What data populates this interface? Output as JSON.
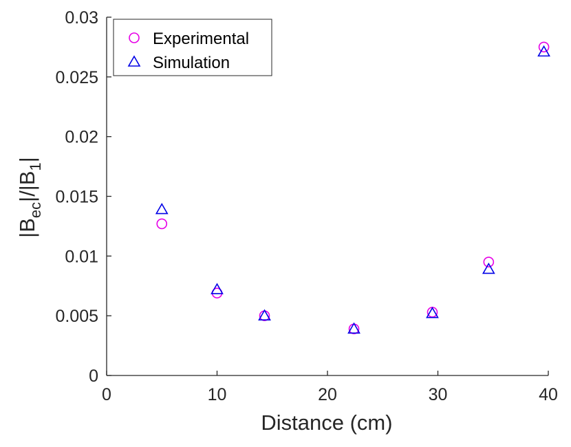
{
  "chart_data": {
    "type": "scatter",
    "xlabel": "Distance (cm)",
    "ylabel": {
      "parts": [
        "|B",
        "ec",
        "|/|B",
        "1",
        "|"
      ]
    },
    "xlim": [
      0,
      40
    ],
    "ylim": [
      0,
      0.03
    ],
    "xticks": [
      0,
      10,
      20,
      30,
      40
    ],
    "yticks": [
      0,
      0.005,
      0.01,
      0.015,
      0.02,
      0.025,
      0.03
    ],
    "xtick_labels": [
      "0",
      "10",
      "20",
      "30",
      "40"
    ],
    "ytick_labels": [
      "0",
      "0.005",
      "0.01",
      "0.015",
      "0.02",
      "0.025",
      "0.03"
    ],
    "grid": false,
    "legend_position": "top-left",
    "series": [
      {
        "name": "Experimental",
        "marker": "circle",
        "color": "#e600e6",
        "points": [
          {
            "x": 5,
            "y": 0.0127
          },
          {
            "x": 10,
            "y": 0.0069
          },
          {
            "x": 14.3,
            "y": 0.005
          },
          {
            "x": 22.4,
            "y": 0.0039
          },
          {
            "x": 29.5,
            "y": 0.0053
          },
          {
            "x": 34.6,
            "y": 0.0095
          },
          {
            "x": 39.6,
            "y": 0.0275
          }
        ]
      },
      {
        "name": "Simulation",
        "marker": "triangle",
        "color": "#0000e6",
        "points": [
          {
            "x": 5,
            "y": 0.0139
          },
          {
            "x": 10,
            "y": 0.0072
          },
          {
            "x": 14.3,
            "y": 0.005
          },
          {
            "x": 22.4,
            "y": 0.0039
          },
          {
            "x": 29.5,
            "y": 0.0052
          },
          {
            "x": 34.6,
            "y": 0.0089
          },
          {
            "x": 39.6,
            "y": 0.0271
          }
        ]
      }
    ]
  }
}
